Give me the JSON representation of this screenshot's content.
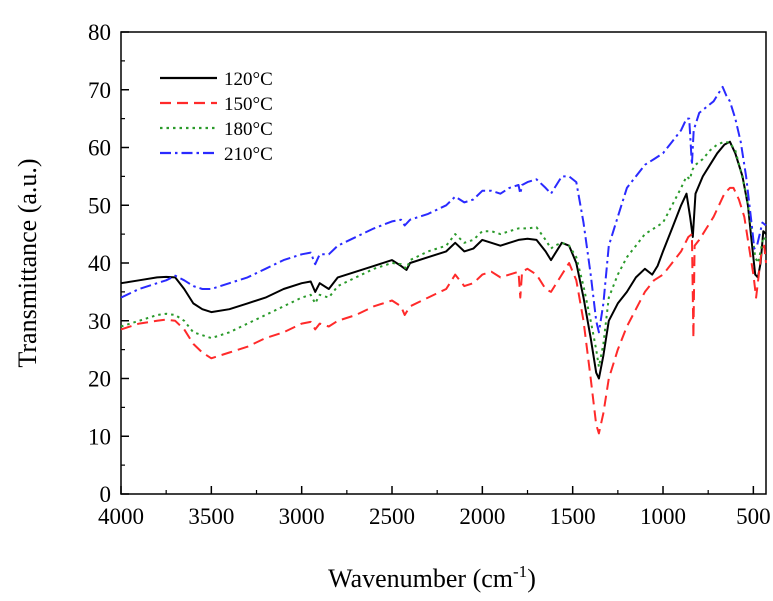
{
  "chart_data": {
    "type": "line",
    "xlabel": "Wavenumber (cm",
    "xlabel_superscript": "-1",
    "xlabel_suffix": ")",
    "ylabel": "Transmittance (a.u.)",
    "xlim": [
      4000,
      430
    ],
    "x_reversed": true,
    "ylim": [
      0,
      80
    ],
    "xticks": [
      4000,
      3500,
      3000,
      2500,
      2000,
      1500,
      1000,
      500
    ],
    "yticks": [
      0,
      10,
      20,
      30,
      40,
      50,
      60,
      70,
      80
    ],
    "grid": false,
    "legend_position": "top-left",
    "series": [
      {
        "name": "120°C",
        "color": "#000000",
        "dash": "solid",
        "points": [
          [
            4000,
            36.5
          ],
          [
            3900,
            37
          ],
          [
            3800,
            37.5
          ],
          [
            3750,
            37.6
          ],
          [
            3700,
            37.5
          ],
          [
            3650,
            35.5
          ],
          [
            3600,
            33
          ],
          [
            3550,
            32
          ],
          [
            3500,
            31.5
          ],
          [
            3400,
            32
          ],
          [
            3300,
            33
          ],
          [
            3200,
            34
          ],
          [
            3100,
            35.5
          ],
          [
            3000,
            36.5
          ],
          [
            2950,
            36.8
          ],
          [
            2925,
            35
          ],
          [
            2900,
            36.5
          ],
          [
            2850,
            35.5
          ],
          [
            2800,
            37.5
          ],
          [
            2700,
            38.5
          ],
          [
            2600,
            39.5
          ],
          [
            2500,
            40.5
          ],
          [
            2450,
            39.5
          ],
          [
            2420,
            38.8
          ],
          [
            2400,
            40
          ],
          [
            2300,
            41
          ],
          [
            2200,
            42
          ],
          [
            2150,
            43.5
          ],
          [
            2100,
            42
          ],
          [
            2050,
            42.5
          ],
          [
            2000,
            44
          ],
          [
            1950,
            43.5
          ],
          [
            1900,
            43
          ],
          [
            1850,
            43.5
          ],
          [
            1800,
            44
          ],
          [
            1750,
            44.2
          ],
          [
            1700,
            44
          ],
          [
            1650,
            42
          ],
          [
            1620,
            40.5
          ],
          [
            1600,
            41.5
          ],
          [
            1560,
            43.5
          ],
          [
            1520,
            43
          ],
          [
            1480,
            40
          ],
          [
            1440,
            34
          ],
          [
            1400,
            27
          ],
          [
            1370,
            21
          ],
          [
            1355,
            20
          ],
          [
            1330,
            24
          ],
          [
            1300,
            30
          ],
          [
            1250,
            33
          ],
          [
            1200,
            35
          ],
          [
            1150,
            37.5
          ],
          [
            1100,
            39
          ],
          [
            1060,
            38
          ],
          [
            1030,
            39.5
          ],
          [
            1000,
            42
          ],
          [
            950,
            46
          ],
          [
            900,
            50
          ],
          [
            870,
            52
          ],
          [
            850,
            48
          ],
          [
            835,
            44.5
          ],
          [
            820,
            52
          ],
          [
            780,
            55
          ],
          [
            740,
            57
          ],
          [
            700,
            59
          ],
          [
            660,
            60.5
          ],
          [
            630,
            61
          ],
          [
            600,
            59
          ],
          [
            560,
            55
          ],
          [
            530,
            50
          ],
          [
            510,
            44
          ],
          [
            490,
            38
          ],
          [
            475,
            37.5
          ],
          [
            460,
            40
          ],
          [
            445,
            45.5
          ],
          [
            430,
            45
          ]
        ]
      },
      {
        "name": "150°C",
        "color": "#ff2a2a",
        "dash": "long",
        "points": [
          [
            4000,
            28.5
          ],
          [
            3900,
            29.5
          ],
          [
            3800,
            30
          ],
          [
            3750,
            30.2
          ],
          [
            3700,
            30
          ],
          [
            3650,
            28.5
          ],
          [
            3600,
            26
          ],
          [
            3550,
            24.5
          ],
          [
            3500,
            23.5
          ],
          [
            3400,
            24.5
          ],
          [
            3300,
            25.5
          ],
          [
            3200,
            27
          ],
          [
            3100,
            28
          ],
          [
            3000,
            29.5
          ],
          [
            2950,
            29.8
          ],
          [
            2925,
            28.5
          ],
          [
            2900,
            29.5
          ],
          [
            2850,
            29
          ],
          [
            2800,
            30
          ],
          [
            2700,
            31
          ],
          [
            2600,
            32.5
          ],
          [
            2500,
            33.5
          ],
          [
            2450,
            32.5
          ],
          [
            2430,
            31
          ],
          [
            2400,
            32.5
          ],
          [
            2300,
            34
          ],
          [
            2200,
            35.5
          ],
          [
            2150,
            38
          ],
          [
            2100,
            36
          ],
          [
            2050,
            36.5
          ],
          [
            2000,
            38
          ],
          [
            1950,
            38.5
          ],
          [
            1900,
            37.5
          ],
          [
            1850,
            38
          ],
          [
            1800,
            38.5
          ],
          [
            1790,
            34
          ],
          [
            1780,
            38.5
          ],
          [
            1750,
            39
          ],
          [
            1700,
            38
          ],
          [
            1650,
            35.5
          ],
          [
            1620,
            35
          ],
          [
            1600,
            36
          ],
          [
            1560,
            38
          ],
          [
            1520,
            40
          ],
          [
            1480,
            37
          ],
          [
            1440,
            30
          ],
          [
            1400,
            20
          ],
          [
            1370,
            12
          ],
          [
            1355,
            10.5
          ],
          [
            1330,
            14
          ],
          [
            1300,
            20
          ],
          [
            1250,
            25
          ],
          [
            1200,
            29
          ],
          [
            1150,
            32
          ],
          [
            1100,
            35
          ],
          [
            1050,
            37
          ],
          [
            1000,
            38
          ],
          [
            950,
            40
          ],
          [
            900,
            42
          ],
          [
            860,
            44.5
          ],
          [
            840,
            45
          ],
          [
            832,
            27
          ],
          [
            825,
            43
          ],
          [
            800,
            44
          ],
          [
            760,
            46
          ],
          [
            720,
            48
          ],
          [
            690,
            50
          ],
          [
            660,
            52
          ],
          [
            630,
            53
          ],
          [
            610,
            53
          ],
          [
            580,
            51
          ],
          [
            550,
            48
          ],
          [
            520,
            42
          ],
          [
            500,
            38
          ],
          [
            485,
            34
          ],
          [
            470,
            38
          ],
          [
            455,
            42
          ],
          [
            440,
            43
          ],
          [
            430,
            40
          ]
        ]
      },
      {
        "name": "180°C",
        "color": "#2a9a2a",
        "dash": "dot",
        "points": [
          [
            4000,
            29
          ],
          [
            3900,
            30
          ],
          [
            3800,
            31
          ],
          [
            3750,
            31.2
          ],
          [
            3700,
            31
          ],
          [
            3650,
            30
          ],
          [
            3600,
            28
          ],
          [
            3550,
            27.5
          ],
          [
            3500,
            27
          ],
          [
            3400,
            28
          ],
          [
            3300,
            29.5
          ],
          [
            3200,
            31
          ],
          [
            3100,
            32.5
          ],
          [
            3000,
            34
          ],
          [
            2950,
            34.5
          ],
          [
            2925,
            33
          ],
          [
            2900,
            34.5
          ],
          [
            2850,
            34
          ],
          [
            2800,
            36
          ],
          [
            2700,
            37.5
          ],
          [
            2600,
            39
          ],
          [
            2500,
            40
          ],
          [
            2450,
            39.8
          ],
          [
            2420,
            39
          ],
          [
            2400,
            40.5
          ],
          [
            2300,
            42
          ],
          [
            2200,
            43
          ],
          [
            2150,
            45
          ],
          [
            2100,
            43.5
          ],
          [
            2050,
            44
          ],
          [
            2000,
            45.5
          ],
          [
            1950,
            45.5
          ],
          [
            1900,
            45
          ],
          [
            1850,
            45.5
          ],
          [
            1800,
            46
          ],
          [
            1750,
            46
          ],
          [
            1700,
            46.2
          ],
          [
            1650,
            44
          ],
          [
            1620,
            42.5
          ],
          [
            1600,
            43
          ],
          [
            1560,
            43.5
          ],
          [
            1520,
            43
          ],
          [
            1480,
            41
          ],
          [
            1440,
            36
          ],
          [
            1400,
            30
          ],
          [
            1370,
            25
          ],
          [
            1355,
            22
          ],
          [
            1330,
            26
          ],
          [
            1300,
            34
          ],
          [
            1250,
            38
          ],
          [
            1200,
            41
          ],
          [
            1150,
            43
          ],
          [
            1100,
            45
          ],
          [
            1050,
            46
          ],
          [
            1000,
            47
          ],
          [
            950,
            50
          ],
          [
            900,
            53
          ],
          [
            870,
            55
          ],
          [
            850,
            54.5
          ],
          [
            840,
            56
          ],
          [
            820,
            57
          ],
          [
            780,
            58
          ],
          [
            740,
            59.5
          ],
          [
            700,
            60.5
          ],
          [
            660,
            61
          ],
          [
            630,
            60.8
          ],
          [
            600,
            59.5
          ],
          [
            570,
            56
          ],
          [
            540,
            52
          ],
          [
            510,
            46
          ],
          [
            490,
            41
          ],
          [
            475,
            40
          ],
          [
            460,
            42
          ],
          [
            445,
            44.5
          ],
          [
            430,
            44
          ]
        ]
      },
      {
        "name": "210°C",
        "color": "#2a2aff",
        "dash": "dashdot",
        "points": [
          [
            4000,
            34
          ],
          [
            3900,
            35.5
          ],
          [
            3800,
            36.5
          ],
          [
            3750,
            37
          ],
          [
            3700,
            37.8
          ],
          [
            3650,
            37
          ],
          [
            3600,
            36
          ],
          [
            3550,
            35.5
          ],
          [
            3500,
            35.5
          ],
          [
            3400,
            36.5
          ],
          [
            3300,
            37.5
          ],
          [
            3200,
            39
          ],
          [
            3100,
            40.5
          ],
          [
            3000,
            41.5
          ],
          [
            2950,
            41.8
          ],
          [
            2925,
            39.8
          ],
          [
            2900,
            41.5
          ],
          [
            2850,
            41.5
          ],
          [
            2800,
            43
          ],
          [
            2700,
            44.5
          ],
          [
            2600,
            46
          ],
          [
            2500,
            47.2
          ],
          [
            2450,
            47.5
          ],
          [
            2430,
            46.5
          ],
          [
            2400,
            47.5
          ],
          [
            2300,
            48.5
          ],
          [
            2200,
            50
          ],
          [
            2150,
            51.5
          ],
          [
            2100,
            50.5
          ],
          [
            2050,
            51
          ],
          [
            2000,
            52.5
          ],
          [
            1950,
            52.5
          ],
          [
            1900,
            52
          ],
          [
            1850,
            53
          ],
          [
            1800,
            53.5
          ],
          [
            1790,
            52
          ],
          [
            1780,
            53.5
          ],
          [
            1750,
            54
          ],
          [
            1700,
            54.5
          ],
          [
            1650,
            53
          ],
          [
            1620,
            52
          ],
          [
            1600,
            53
          ],
          [
            1560,
            55
          ],
          [
            1520,
            55
          ],
          [
            1480,
            54
          ],
          [
            1440,
            47
          ],
          [
            1400,
            38
          ],
          [
            1370,
            30
          ],
          [
            1355,
            28
          ],
          [
            1330,
            33
          ],
          [
            1300,
            43
          ],
          [
            1250,
            48
          ],
          [
            1200,
            53
          ],
          [
            1150,
            55
          ],
          [
            1100,
            57
          ],
          [
            1050,
            58
          ],
          [
            1000,
            59
          ],
          [
            950,
            61
          ],
          [
            900,
            63
          ],
          [
            870,
            65
          ],
          [
            855,
            65
          ],
          [
            840,
            57
          ],
          [
            830,
            63
          ],
          [
            800,
            66
          ],
          [
            760,
            67
          ],
          [
            720,
            68
          ],
          [
            690,
            69.5
          ],
          [
            670,
            70.5
          ],
          [
            650,
            69
          ],
          [
            630,
            68
          ],
          [
            600,
            65
          ],
          [
            570,
            61
          ],
          [
            540,
            55
          ],
          [
            510,
            47
          ],
          [
            495,
            42.5
          ],
          [
            480,
            43
          ],
          [
            465,
            45
          ],
          [
            450,
            47
          ],
          [
            430,
            46.5
          ]
        ]
      }
    ]
  }
}
